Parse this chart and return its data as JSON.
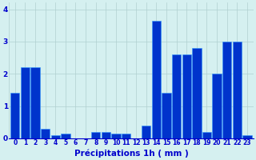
{
  "hours": [
    0,
    1,
    2,
    3,
    4,
    5,
    6,
    7,
    8,
    9,
    10,
    11,
    12,
    13,
    14,
    15,
    16,
    17,
    18,
    19,
    20,
    21,
    22,
    23
  ],
  "values": [
    1.4,
    2.2,
    2.2,
    0.3,
    0.1,
    0.15,
    0.0,
    0.0,
    0.2,
    0.2,
    0.15,
    0.15,
    0.0,
    0.4,
    3.65,
    1.4,
    2.6,
    2.6,
    2.8,
    0.2,
    2.0,
    3.0,
    3.0,
    0.1
  ],
  "bar_color": "#0033cc",
  "bar_edge_color": "#3399ff",
  "background_color": "#d5f0f0",
  "grid_color": "#b0d0d0",
  "xlabel": "Précipitations 1h ( mm )",
  "xlabel_color": "#0000cc",
  "xlabel_fontsize": 7.5,
  "tick_color": "#0000cc",
  "tick_fontsize": 5.5,
  "ytick_fontsize": 6.5,
  "ylim": [
    0,
    4.2
  ],
  "yticks": [
    0,
    1,
    2,
    3,
    4
  ]
}
